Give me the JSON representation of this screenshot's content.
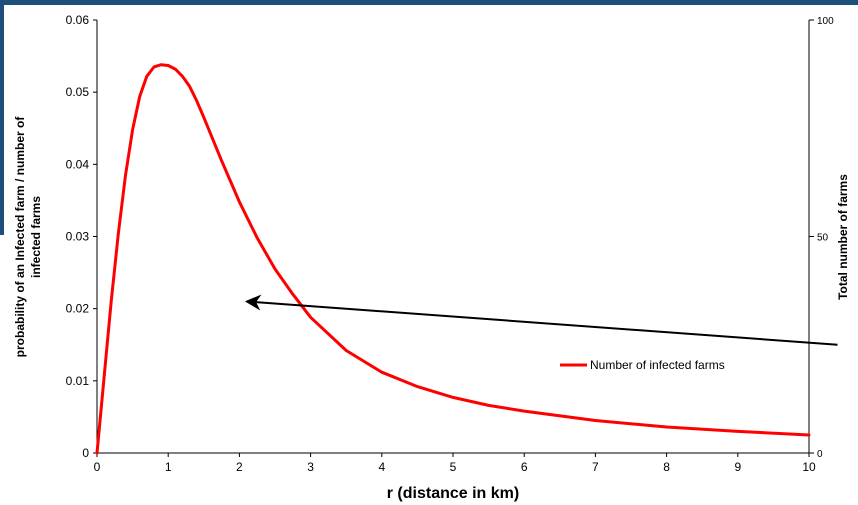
{
  "chart_data": {
    "type": "line",
    "xlabel": "r (distance in km)",
    "ylabel": "probability of an Infected farm / number of infected farms",
    "ylabel_lines": [
      "probability of an Infected farm / number of",
      "infected farms"
    ],
    "y2label": "Total number of farms",
    "xlim": [
      0,
      10
    ],
    "ylim": [
      0,
      0.06
    ],
    "y2lim": [
      0,
      100
    ],
    "x_ticks": [
      "0",
      "1",
      "2",
      "3",
      "4",
      "5",
      "6",
      "7",
      "8",
      "9",
      "10"
    ],
    "y_ticks": [
      "0",
      "0.01",
      "0.02",
      "0.03",
      "0.04",
      "0.05",
      "0.06"
    ],
    "y2_ticks": [
      "0",
      "50",
      "100"
    ],
    "grid": false,
    "legend_position": "right-middle",
    "series": [
      {
        "name": "Number of infected farms",
        "color": "#ff0000",
        "x": [
          0,
          0.1,
          0.2,
          0.3,
          0.4,
          0.5,
          0.6,
          0.7,
          0.8,
          0.9,
          1.0,
          1.1,
          1.2,
          1.3,
          1.4,
          1.5,
          1.75,
          2.0,
          2.25,
          2.5,
          2.75,
          3.0,
          3.5,
          4.0,
          4.5,
          5.0,
          5.5,
          6.0,
          7.0,
          8.0,
          9.0,
          10.0
        ],
        "y": [
          0,
          0.0105,
          0.021,
          0.0305,
          0.0385,
          0.0448,
          0.0494,
          0.0522,
          0.0535,
          0.0538,
          0.0537,
          0.0532,
          0.0522,
          0.0508,
          0.0488,
          0.0465,
          0.0405,
          0.0348,
          0.0298,
          0.0255,
          0.022,
          0.0188,
          0.0142,
          0.0112,
          0.0092,
          0.0077,
          0.0066,
          0.0058,
          0.0045,
          0.0036,
          0.003,
          0.0025
        ]
      }
    ],
    "annotations": [
      {
        "type": "arrow",
        "from": [
          10.4,
          0.015
        ],
        "to": [
          2.1,
          0.021
        ],
        "color": "#000000"
      }
    ]
  }
}
